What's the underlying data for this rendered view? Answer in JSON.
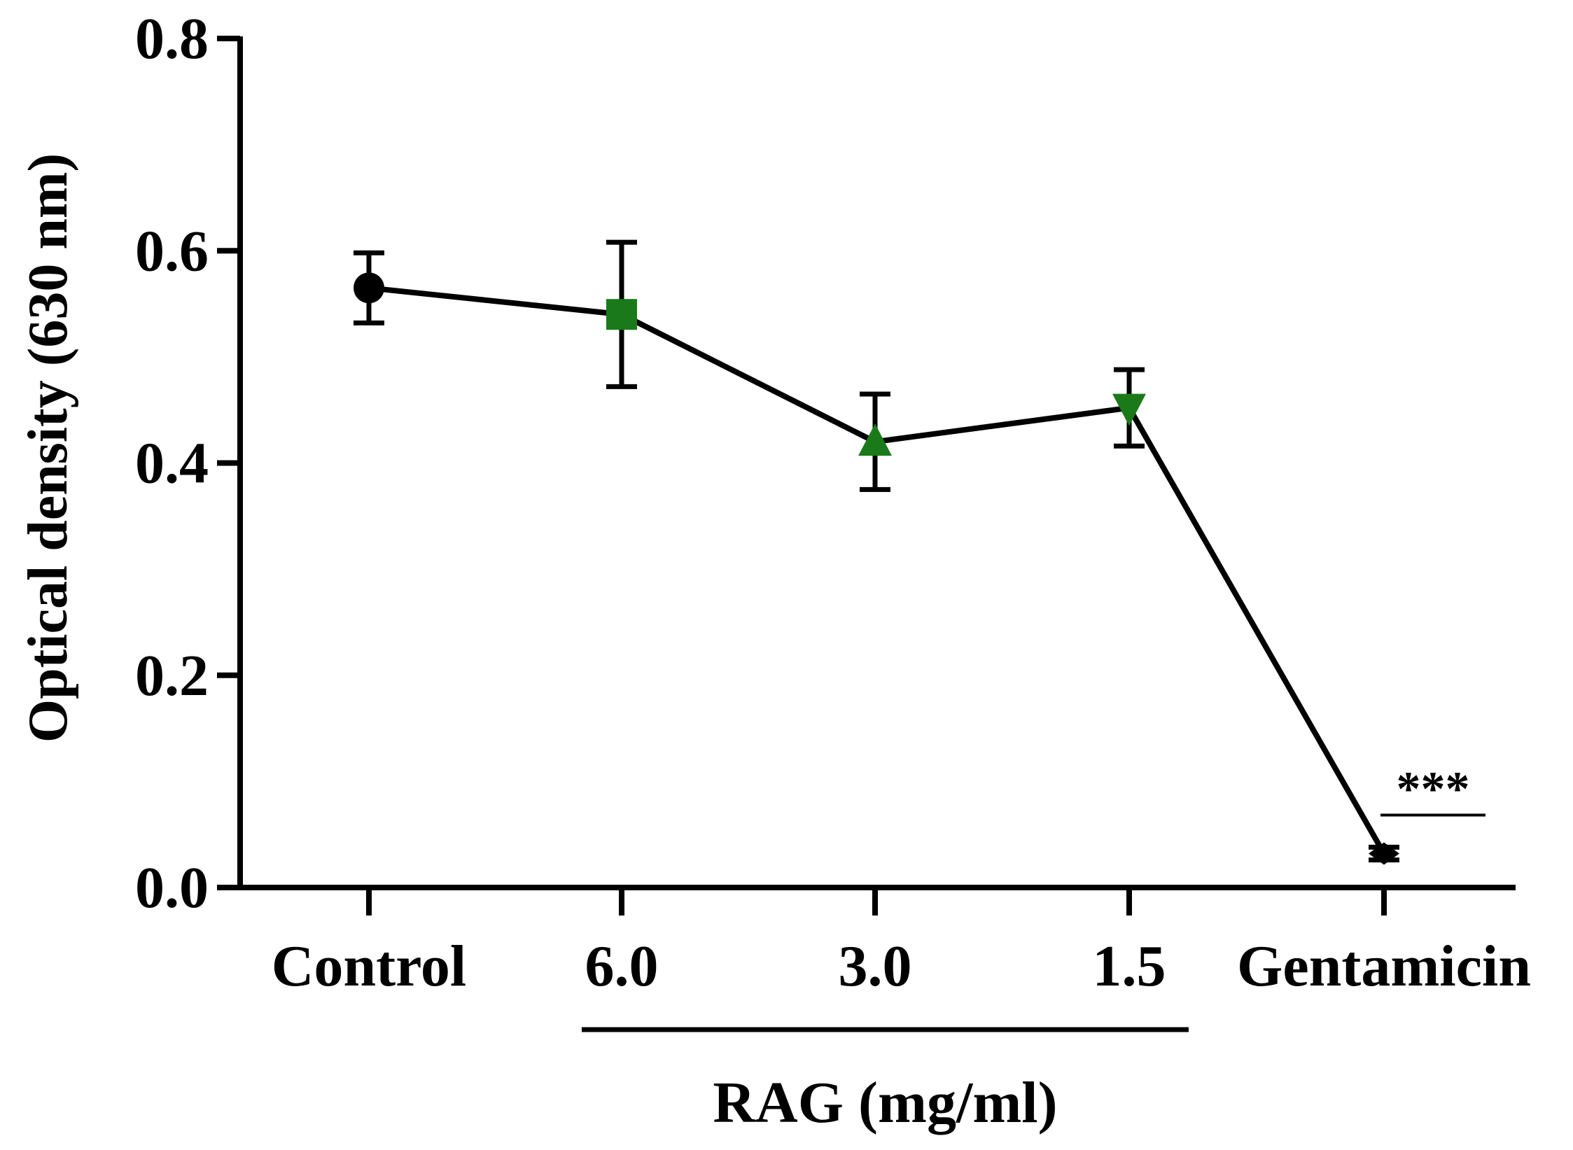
{
  "chart_data": {
    "type": "line",
    "title": "",
    "ylabel": "Optical density (630 nm)",
    "xlabel": "",
    "categories": [
      "Control",
      "6.0",
      "3.0",
      "1.5",
      "Gentamicin"
    ],
    "group_label": "RAG (mg/ml)",
    "group_members": [
      "6.0",
      "3.0",
      "1.5"
    ],
    "ylim": [
      0.0,
      0.8
    ],
    "yticks": [
      "0.0",
      "0.2",
      "0.4",
      "0.6",
      "0.8"
    ],
    "grid": false,
    "series": [
      {
        "name": "Optical density",
        "values": [
          0.565,
          0.54,
          0.42,
          0.452,
          0.032
        ],
        "error": [
          0.033,
          0.068,
          0.045,
          0.036,
          0.006
        ],
        "markers": [
          "circle",
          "square",
          "triangle-up",
          "triangle-down",
          "diamond"
        ],
        "marker_colors": [
          "#000000",
          "#1a7a1a",
          "#1a7a1a",
          "#1a7a1a",
          "#000000"
        ]
      }
    ],
    "annotations": [
      {
        "category": "Gentamicin",
        "text": "***"
      }
    ]
  }
}
